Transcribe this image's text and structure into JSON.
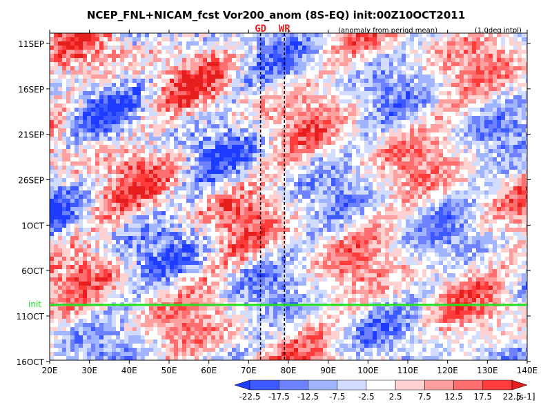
{
  "chart_data": {
    "type": "heatmap",
    "title": "NCEP_FNL+NICAM_fcst Vor200_anom (8S-EQ) init:00Z10OCT2011",
    "subtitle_left": "(anomaly from period mean)",
    "subtitle_right": "(1.0deg intpl)",
    "x_ticks": [
      "20E",
      "30E",
      "40E",
      "50E",
      "60E",
      "70E",
      "80E",
      "90E",
      "100E",
      "110E",
      "120E",
      "130E",
      "140E"
    ],
    "xlim": [
      20,
      140
    ],
    "y_ticks": [
      "11SEP",
      "16SEP",
      "21SEP",
      "26SEP",
      "1OCT",
      "6OCT",
      "11OCT",
      "16OCT"
    ],
    "y_tick_days": [
      0,
      5,
      10,
      15,
      20,
      25,
      30,
      35
    ],
    "ylim_days": [
      0,
      36
    ],
    "markers": [
      {
        "label": "GD",
        "lon": 73
      },
      {
        "label": "WR",
        "lon": 79
      }
    ],
    "init_line": {
      "label": "init",
      "day": 29
    },
    "colorbar": {
      "levels": [
        "-22.5",
        "-17.5",
        "-12.5",
        "-7.5",
        "-2.5",
        "2.5",
        "7.5",
        "12.5",
        "17.5",
        "22.5"
      ],
      "colors": [
        "#1e3cff",
        "#3c5aff",
        "#6e82ff",
        "#a0b4ff",
        "#d2dcff",
        "#ffffff",
        "#ffd2d2",
        "#ffa0a0",
        "#ff6e6e",
        "#ff3c3c",
        "#e61e1e"
      ],
      "unit": "[s-1]"
    }
  }
}
